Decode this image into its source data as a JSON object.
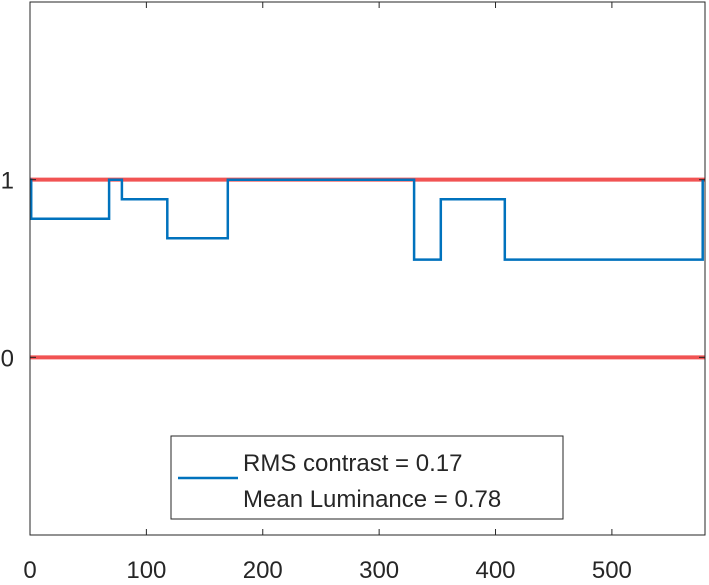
{
  "chart_data": {
    "type": "line",
    "title": "",
    "xlabel": "",
    "ylabel": "",
    "xlim": [
      0,
      580
    ],
    "ylim": [
      -1,
      2
    ],
    "xticks": [
      0,
      100,
      200,
      300,
      400,
      500
    ],
    "xtick_labels": [
      "0",
      "100",
      "200",
      "300",
      "400",
      "500"
    ],
    "yticks": [
      0,
      1
    ],
    "ytick_labels": [
      "0",
      "1"
    ],
    "grid": false,
    "box": true,
    "legend": {
      "placement": "bottom-center",
      "entries": [
        {
          "label": "RMS contrast = 0.17",
          "series": 0
        },
        {
          "label": "Mean Luminance = 0.78",
          "series": null
        }
      ]
    },
    "reference_lines": [
      {
        "y": 1,
        "color": "#f04040"
      },
      {
        "y": 0,
        "color": "#f04040"
      }
    ],
    "series": [
      {
        "color": "#0072bd",
        "x": [
          0,
          1,
          1,
          68,
          68,
          79,
          79,
          118,
          118,
          170,
          170,
          330,
          330,
          353,
          353,
          408,
          408,
          578,
          578
        ],
        "y": [
          1,
          1,
          0.78,
          0.78,
          1,
          1,
          0.89,
          0.89,
          0.67,
          0.67,
          1,
          1,
          0.55,
          0.55,
          0.89,
          0.89,
          0.55,
          0.55,
          1
        ]
      }
    ]
  }
}
